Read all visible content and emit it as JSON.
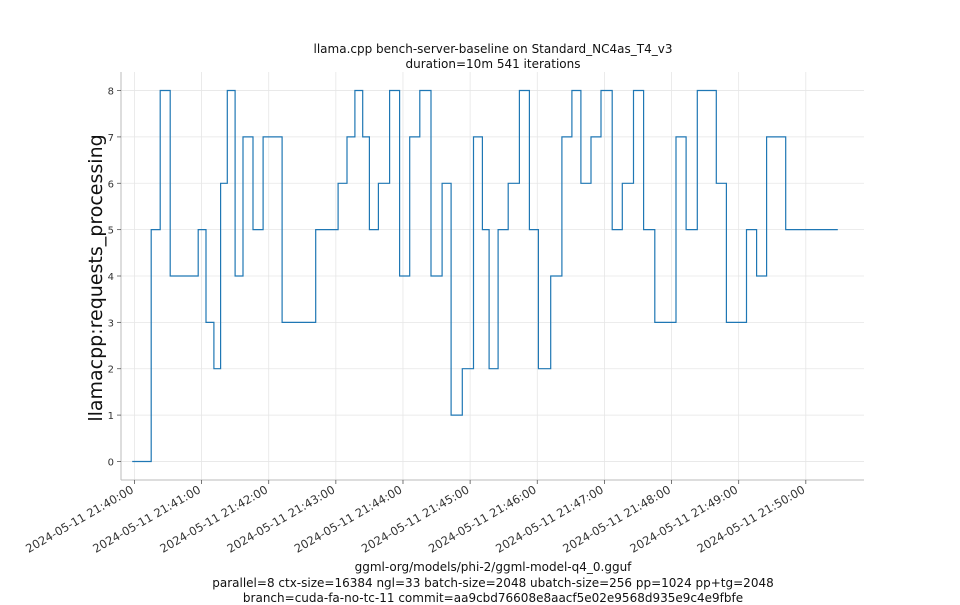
{
  "chart_data": {
    "type": "line",
    "title": "llama.cpp bench-server-baseline on Standard_NC4as_T4_v3",
    "subtitle": "duration=10m 541 iterations",
    "xlabel": "",
    "ylabel": "llamacpp:requests_processing",
    "footer": [
      "ggml-org/models/phi-2/ggml-model-q4_0.gguf",
      "parallel=8 ctx-size=16384 ngl=33 batch-size=2048 ubatch-size=256 pp=1024 pp+tg=2048",
      "branch=cuda-fa-no-tc-11 commit=aa9cbd76608e8aacf5e02e9568d935e9c4e9fbfe"
    ],
    "ylim": [
      -0.4,
      8.4
    ],
    "yticks": [
      0,
      1,
      2,
      3,
      4,
      5,
      6,
      7,
      8
    ],
    "xlim": [
      "2024-05-11 21:39:48",
      "2024-05-11 21:50:52"
    ],
    "xticks": [
      "2024-05-11 21:40:00",
      "2024-05-11 21:41:00",
      "2024-05-11 21:42:00",
      "2024-05-11 21:43:00",
      "2024-05-11 21:44:00",
      "2024-05-11 21:45:00",
      "2024-05-11 21:46:00",
      "2024-05-11 21:47:00",
      "2024-05-11 21:48:00",
      "2024-05-11 21:49:00",
      "2024-05-11 21:50:00"
    ],
    "grid": true,
    "line_color": "#1f77b4",
    "series": [
      {
        "name": "",
        "x": [
          "2024-05-11 21:39:58",
          "2024-05-11 21:40:15",
          "2024-05-11 21:40:23",
          "2024-05-11 21:40:32",
          "2024-05-11 21:40:38",
          "2024-05-11 21:40:57",
          "2024-05-11 21:41:04",
          "2024-05-11 21:41:11",
          "2024-05-11 21:41:17",
          "2024-05-11 21:41:23",
          "2024-05-11 21:41:30",
          "2024-05-11 21:41:37",
          "2024-05-11 21:41:46",
          "2024-05-11 21:41:55",
          "2024-05-11 21:42:05",
          "2024-05-11 21:42:12",
          "2024-05-11 21:42:22",
          "2024-05-11 21:42:42",
          "2024-05-11 21:43:02",
          "2024-05-11 21:43:10",
          "2024-05-11 21:43:17",
          "2024-05-11 21:43:24",
          "2024-05-11 21:43:30",
          "2024-05-11 21:43:38",
          "2024-05-11 21:43:48",
          "2024-05-11 21:43:57",
          "2024-05-11 21:44:06",
          "2024-05-11 21:44:15",
          "2024-05-11 21:44:25",
          "2024-05-11 21:44:35",
          "2024-05-11 21:44:43",
          "2024-05-11 21:44:53",
          "2024-05-11 21:45:03",
          "2024-05-11 21:45:11",
          "2024-05-11 21:45:17",
          "2024-05-11 21:45:25",
          "2024-05-11 21:45:34",
          "2024-05-11 21:45:44",
          "2024-05-11 21:45:53",
          "2024-05-11 21:46:01",
          "2024-05-11 21:46:12",
          "2024-05-11 21:46:22",
          "2024-05-11 21:46:31",
          "2024-05-11 21:46:39",
          "2024-05-11 21:46:48",
          "2024-05-11 21:46:57",
          "2024-05-11 21:47:07",
          "2024-05-11 21:47:16",
          "2024-05-11 21:47:26",
          "2024-05-11 21:47:35",
          "2024-05-11 21:47:45",
          "2024-05-11 21:47:55",
          "2024-05-11 21:48:04",
          "2024-05-11 21:48:13",
          "2024-05-11 21:48:23",
          "2024-05-11 21:48:40",
          "2024-05-11 21:48:49",
          "2024-05-11 21:48:58",
          "2024-05-11 21:49:07",
          "2024-05-11 21:49:16",
          "2024-05-11 21:49:25",
          "2024-05-11 21:49:42",
          "2024-05-11 21:49:51",
          "2024-05-11 21:50:00",
          "2024-05-11 21:50:09",
          "2024-05-11 21:50:18",
          "2024-05-11 21:50:25"
        ],
        "y": [
          0,
          5,
          8,
          4,
          4,
          5,
          3,
          2,
          6,
          8,
          4,
          7,
          5,
          7,
          7,
          3,
          3,
          5,
          6,
          7,
          8,
          7,
          5,
          6,
          8,
          4,
          7,
          8,
          4,
          6,
          1,
          2,
          7,
          5,
          2,
          5,
          6,
          8,
          5,
          2,
          4,
          7,
          8,
          6,
          7,
          8,
          5,
          6,
          8,
          5,
          3,
          3,
          7,
          5,
          8,
          6,
          3,
          3,
          5,
          4,
          7,
          5,
          5,
          5,
          5,
          5,
          5
        ]
      }
    ]
  }
}
